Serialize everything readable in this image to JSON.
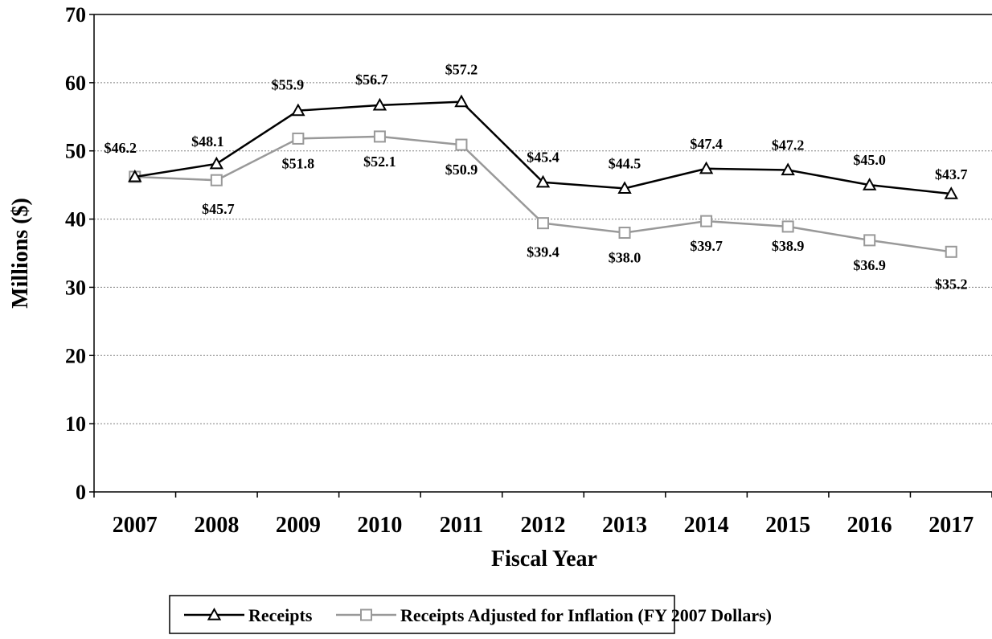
{
  "chart_data": {
    "type": "line",
    "xlabel": "Fiscal Year",
    "ylabel": "Millions ($)",
    "categories": [
      "2007",
      "2008",
      "2009",
      "2010",
      "2011",
      "2012",
      "2013",
      "2014",
      "2015",
      "2016",
      "2017"
    ],
    "yticks": [
      "0",
      "10",
      "20",
      "30",
      "40",
      "50",
      "60",
      "70"
    ],
    "ylim": [
      0,
      70
    ],
    "grid": "horizontal dotted",
    "legend_placement": "bottom",
    "series": [
      {
        "name": "Receipts",
        "marker": "triangle",
        "color": "#000000",
        "values": [
          46.2,
          48.1,
          55.9,
          56.7,
          57.2,
          45.4,
          44.5,
          47.4,
          47.2,
          45.0,
          43.7
        ],
        "labels": [
          "$46.2",
          "$48.1",
          "$55.9",
          "$56.7",
          "$57.2",
          "$45.4",
          "$44.5",
          "$47.4",
          "$47.2",
          "$45.0",
          "$43.7"
        ]
      },
      {
        "name": "Receipts Adjusted for Inflation (FY 2007 Dollars)",
        "marker": "square",
        "color": "#999999",
        "values": [
          46.2,
          45.7,
          51.8,
          52.1,
          50.9,
          39.4,
          38.0,
          39.7,
          38.9,
          36.9,
          35.2
        ],
        "labels": [
          "",
          "$45.7",
          "$51.8",
          "$52.1",
          "$50.9",
          "$39.4",
          "$38.0",
          "$39.7",
          "$38.9",
          "$36.9",
          "$35.2"
        ]
      }
    ]
  }
}
